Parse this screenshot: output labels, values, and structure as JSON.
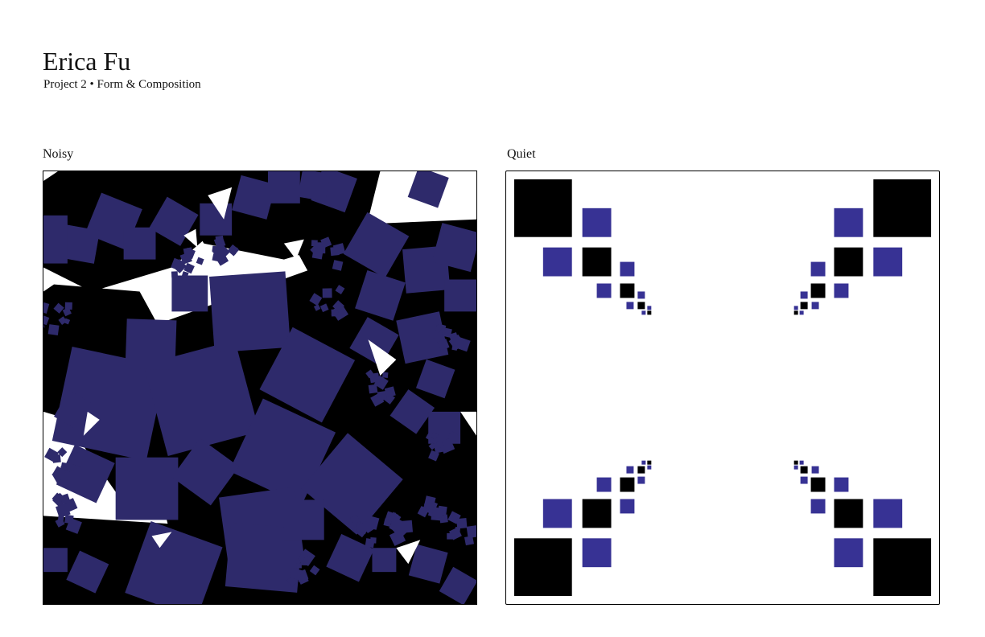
{
  "header": {
    "name": "Erica Fu",
    "subtitle": "Project 2 • Form & Composition"
  },
  "panels": {
    "noisy": {
      "label": "Noisy"
    },
    "quiet": {
      "label": "Quiet"
    }
  },
  "colors": {
    "navy": "#2e2a6b",
    "accent_blue": "#373294",
    "black": "#000000",
    "background": "#ffffff"
  }
}
